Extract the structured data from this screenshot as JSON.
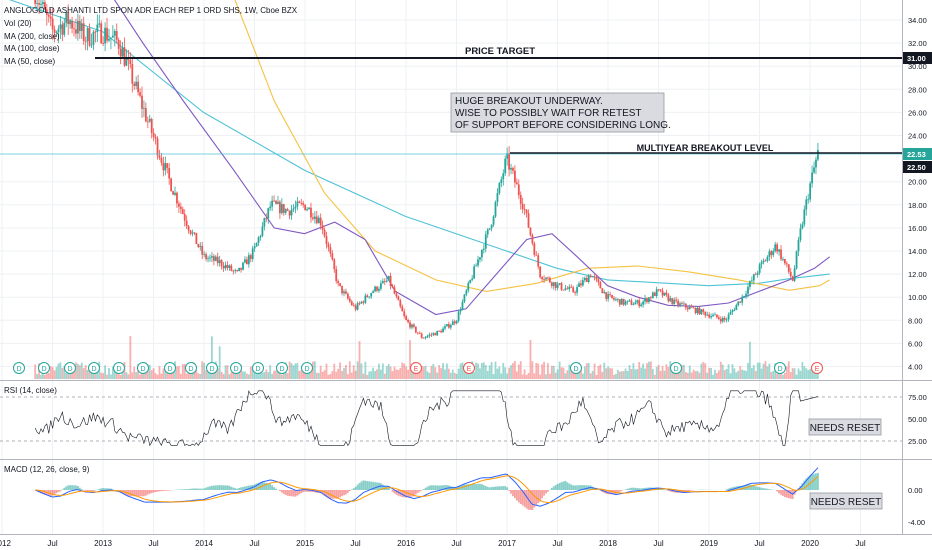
{
  "main_panel": {
    "symbol_title": "ANGLOGOLD ASHANTI LTD SPON ADR EACH REP 1 ORD SHS, 1W, Cboe BZX",
    "indicators": [
      "Vol (20)",
      "MA (200, close)",
      "MA (100, close)",
      "MA (50, close)"
    ]
  },
  "annotations": {
    "price_target_label": "PRICE TARGET",
    "breakout_label": "MULTIYEAR BREAKOUT LEVEL",
    "comment_lines": [
      "HUGE BREAKOUT UNDERWAY.",
      "WISE TO POSSIBLY WAIT FOR RETEST",
      "OF SUPPORT BEFORE CONSIDERING LONG."
    ],
    "rsi_note": "NEEDS RESET",
    "macd_note": "NEEDS RESET"
  },
  "price_axis": {
    "ticks": [
      "34.00",
      "32.00",
      "30.00",
      "28.00",
      "26.00",
      "24.00",
      "20.00",
      "18.00",
      "16.00",
      "14.00",
      "12.00",
      "10.00",
      "8.00",
      "6.00",
      "4.00"
    ],
    "badges": [
      {
        "text": "31.00",
        "bg": "#131722"
      },
      {
        "text": "22.53",
        "bg": "#26a69a"
      },
      {
        "text": "22.50",
        "bg": "#131722"
      }
    ]
  },
  "rsi_panel": {
    "title": "RSI (14, close)",
    "ticks": [
      "75.00",
      "50.00",
      "25.00"
    ]
  },
  "macd_panel": {
    "title": "MACD (12, 26, close, 9)",
    "ticks": [
      "0.00",
      "-4.00"
    ]
  },
  "time_axis": {
    "labels": [
      "2012",
      "Jul",
      "2013",
      "Jul",
      "2014",
      "Jul",
      "2015",
      "Jul",
      "2016",
      "Jul",
      "2017",
      "Jul",
      "2018",
      "Jul",
      "2019",
      "Jul",
      "2020",
      "Jul"
    ]
  },
  "event_markers": [
    "D",
    "D",
    "D",
    "D",
    "D",
    "D",
    "D",
    "D",
    "D",
    "D",
    "D",
    "D",
    "D",
    "E",
    "E",
    "D",
    "D",
    "D",
    "E"
  ],
  "chart_data": {
    "type": "candlestick",
    "title": "ANGLOGOLD ASHANTI LTD SPON ADR EACH REP 1 ORD SHS, 1W, Cboe BZX",
    "y_range": [
      3.5,
      35
    ],
    "price_target": 31.0,
    "breakout_level": 22.5,
    "last_price": 22.53,
    "close_series": [
      {
        "date": "2011-11",
        "close": 36.5
      },
      {
        "date": "2012-01",
        "close": 33.0
      },
      {
        "date": "2012-03",
        "close": 34.0
      },
      {
        "date": "2012-05",
        "close": 32.5
      },
      {
        "date": "2012-07",
        "close": 33.0
      },
      {
        "date": "2012-09",
        "close": 32.0
      },
      {
        "date": "2012-11",
        "close": 28.0
      },
      {
        "date": "2013-01",
        "close": 24.0
      },
      {
        "date": "2013-03",
        "close": 20.0
      },
      {
        "date": "2013-05",
        "close": 16.5
      },
      {
        "date": "2013-07",
        "close": 13.5
      },
      {
        "date": "2013-09",
        "close": 13.0
      },
      {
        "date": "2013-11",
        "close": 12.0
      },
      {
        "date": "2014-01",
        "close": 14.0
      },
      {
        "date": "2014-03",
        "close": 18.0
      },
      {
        "date": "2014-05",
        "close": 17.5
      },
      {
        "date": "2014-07",
        "close": 18.0
      },
      {
        "date": "2014-09",
        "close": 16.5
      },
      {
        "date": "2014-11",
        "close": 11.0
      },
      {
        "date": "2015-01",
        "close": 9.0
      },
      {
        "date": "2015-03",
        "close": 10.5
      },
      {
        "date": "2015-05",
        "close": 11.5
      },
      {
        "date": "2015-07",
        "close": 8.0
      },
      {
        "date": "2015-09",
        "close": 6.5
      },
      {
        "date": "2015-11",
        "close": 7.0
      },
      {
        "date": "2016-01",
        "close": 8.0
      },
      {
        "date": "2016-03",
        "close": 12.0
      },
      {
        "date": "2016-05",
        "close": 16.0
      },
      {
        "date": "2016-07",
        "close": 22.0
      },
      {
        "date": "2016-09",
        "close": 18.0
      },
      {
        "date": "2016-11",
        "close": 12.0
      },
      {
        "date": "2017-01",
        "close": 11.0
      },
      {
        "date": "2017-03",
        "close": 10.5
      },
      {
        "date": "2017-05",
        "close": 12.0
      },
      {
        "date": "2017-07",
        "close": 10.0
      },
      {
        "date": "2017-09",
        "close": 9.5
      },
      {
        "date": "2017-11",
        "close": 9.5
      },
      {
        "date": "2018-01",
        "close": 10.5
      },
      {
        "date": "2018-03",
        "close": 9.5
      },
      {
        "date": "2018-05",
        "close": 9.0
      },
      {
        "date": "2018-07",
        "close": 8.5
      },
      {
        "date": "2018-09",
        "close": 8.0
      },
      {
        "date": "2018-11",
        "close": 10.0
      },
      {
        "date": "2019-01",
        "close": 12.5
      },
      {
        "date": "2019-03",
        "close": 14.5
      },
      {
        "date": "2019-05",
        "close": 11.5
      },
      {
        "date": "2019-06",
        "close": 16.0
      },
      {
        "date": "2019-07",
        "close": 19.5
      },
      {
        "date": "2019-08",
        "close": 22.5
      }
    ],
    "moving_averages": [
      {
        "name": "MA (200, close)",
        "color": "#4fc3d6",
        "points": [
          [
            -0.5,
            36
          ],
          [
            0.5,
            33
          ],
          [
            1.5,
            26
          ],
          [
            2.5,
            21
          ],
          [
            3.5,
            17
          ],
          [
            4.5,
            14
          ],
          [
            5,
            12.5
          ],
          [
            5.5,
            11.5
          ],
          [
            6.5,
            11
          ],
          [
            7,
            11.2
          ],
          [
            7.3,
            11.6
          ],
          [
            7.7,
            12
          ]
        ]
      },
      {
        "name": "MA (100, close)",
        "color": "#f5c242",
        "points": [
          [
            1.8,
            36
          ],
          [
            2.2,
            27
          ],
          [
            2.7,
            19
          ],
          [
            3.2,
            14
          ],
          [
            3.8,
            11.5
          ],
          [
            4.3,
            10.5
          ],
          [
            4.8,
            11.2
          ],
          [
            5.3,
            12.5
          ],
          [
            5.8,
            12.7
          ],
          [
            6.3,
            12.2
          ],
          [
            6.8,
            11.5
          ],
          [
            7.3,
            10.6
          ],
          [
            7.6,
            11
          ],
          [
            7.7,
            11.5
          ]
        ]
      },
      {
        "name": "MA (50, close)",
        "color": "#7e57c2",
        "points": [
          [
            0.6,
            36
          ],
          [
            0.9,
            32
          ],
          [
            1.3,
            27
          ],
          [
            1.8,
            21
          ],
          [
            2.2,
            16
          ],
          [
            2.5,
            15.5
          ],
          [
            2.8,
            16.5
          ],
          [
            3.1,
            15
          ],
          [
            3.4,
            10.5
          ],
          [
            3.8,
            8.5
          ],
          [
            4.1,
            9
          ],
          [
            4.4,
            12
          ],
          [
            4.7,
            15
          ],
          [
            4.95,
            15.5
          ],
          [
            5.2,
            13.5
          ],
          [
            5.5,
            11
          ],
          [
            5.8,
            10
          ],
          [
            6.1,
            9.3
          ],
          [
            6.4,
            9.2
          ],
          [
            6.7,
            9.5
          ],
          [
            7.0,
            10.5
          ],
          [
            7.3,
            11.5
          ],
          [
            7.55,
            12.5
          ],
          [
            7.7,
            13.5
          ]
        ]
      }
    ]
  },
  "colors": {
    "up": "#26a69a",
    "down": "#ef5350",
    "annotation_box": "#d9dbe0",
    "text": "#131722",
    "grid": "#eef0f3"
  }
}
